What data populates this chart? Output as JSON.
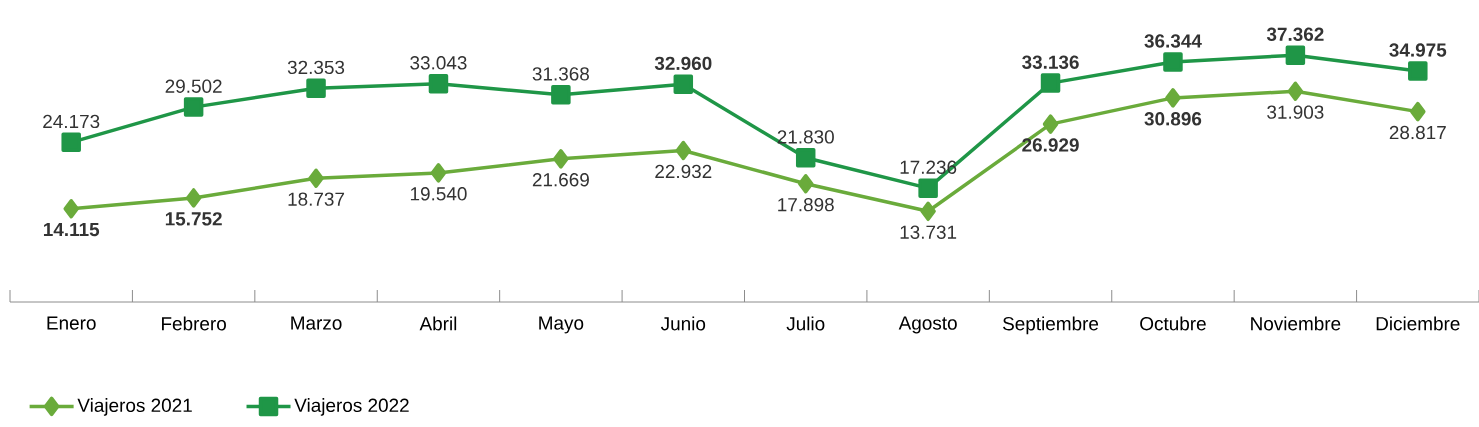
{
  "chart_data": {
    "type": "line",
    "categories": [
      "Enero",
      "Febrero",
      "Marzo",
      "Abril",
      "Mayo",
      "Junio",
      "Julio",
      "Agosto",
      "Septiembre",
      "Octubre",
      "Noviembre",
      "Diciembre"
    ],
    "series": [
      {
        "name": "Viajeros 2021",
        "color": "#6aab3b",
        "marker": "diamond",
        "values": [
          14115,
          15752,
          18737,
          19540,
          21669,
          22932,
          17898,
          13731,
          26929,
          30896,
          31903,
          28817
        ],
        "value_labels": [
          "**14.115**",
          "**15.752**",
          "18.737",
          "19.540",
          "21.669",
          "22.932",
          "17.898",
          "13.731",
          "**26.929**",
          "**30.896**",
          "31.903",
          "28.817"
        ]
      },
      {
        "name": "Viajeros 2022",
        "color": "#1f9647",
        "marker": "square",
        "values": [
          24173,
          29502,
          32353,
          33043,
          31368,
          32960,
          21830,
          17236,
          33136,
          36344,
          37362,
          34975
        ],
        "value_labels": [
          "24.173",
          "29.502",
          "32.353",
          "33.043",
          "31.368",
          "**32.960**",
          "21.830",
          "17.236",
          "**33.136**",
          "**36.344**",
          "**37.362**",
          "**34.975**"
        ]
      }
    ],
    "legend": "bottom left"
  }
}
